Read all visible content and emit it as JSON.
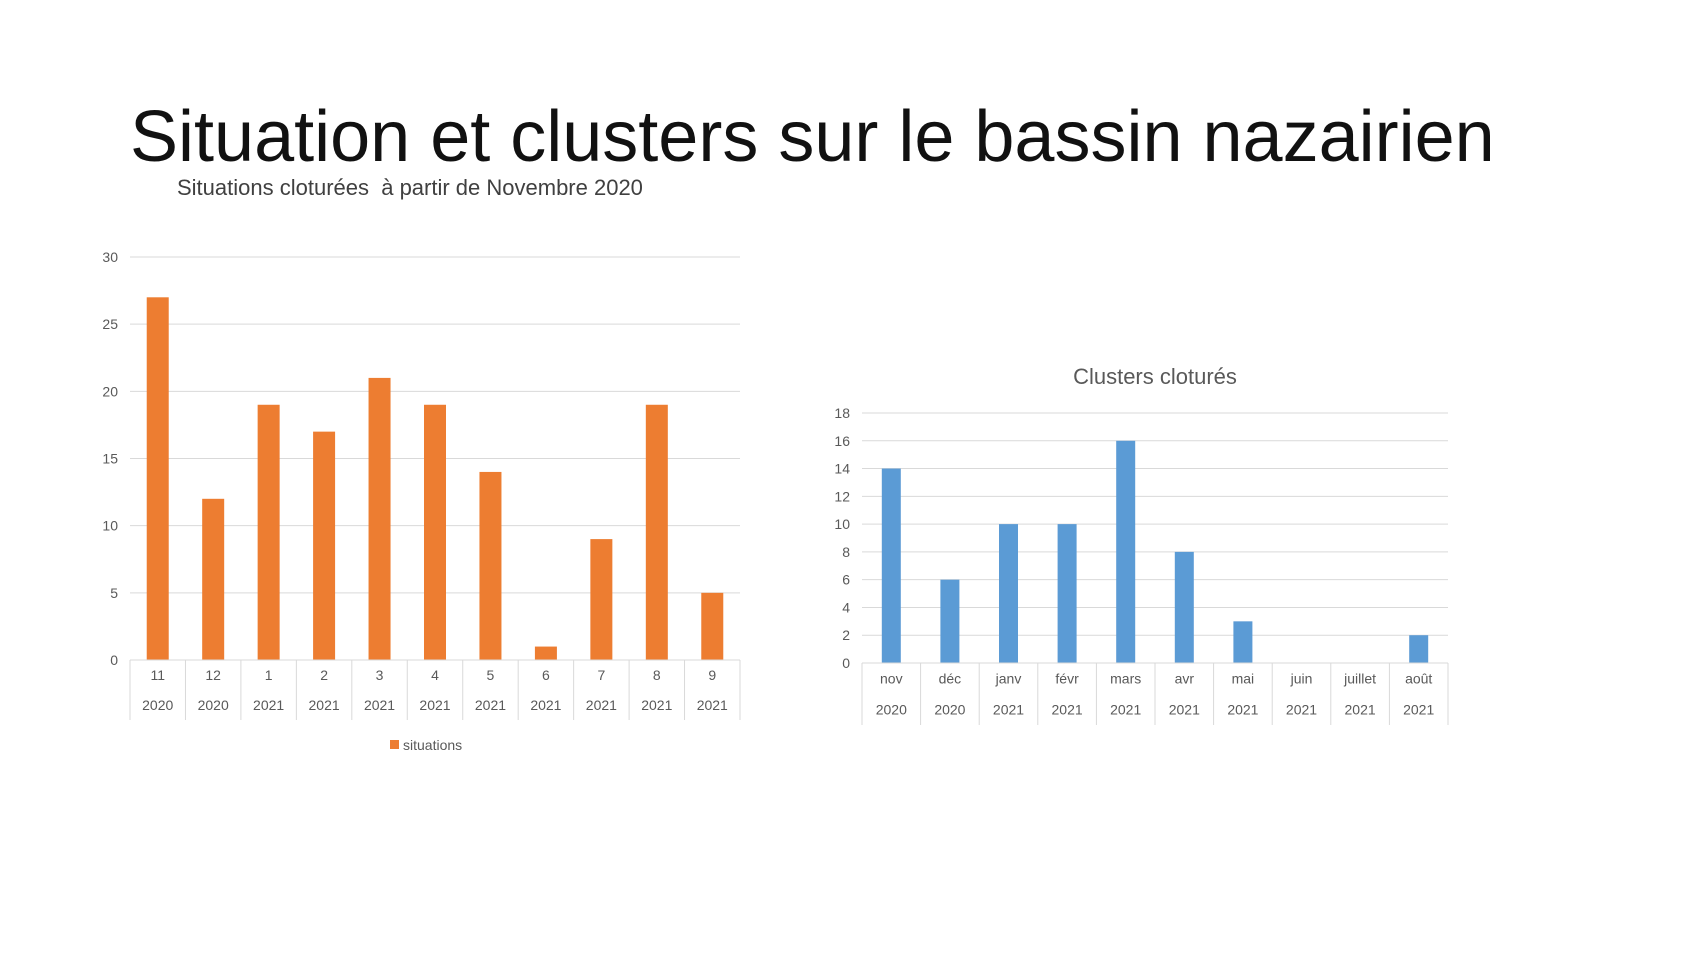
{
  "slide": {
    "title": "Situation et clusters sur le bassin nazairien",
    "subtitle": "Situations cloturées  à partir de Novembre 2020"
  },
  "chart_data": [
    {
      "type": "bar",
      "title": "",
      "categories": [
        {
          "month": "11",
          "year": "2020"
        },
        {
          "month": "12",
          "year": "2020"
        },
        {
          "month": "1",
          "year": "2021"
        },
        {
          "month": "2",
          "year": "2021"
        },
        {
          "month": "3",
          "year": "2021"
        },
        {
          "month": "4",
          "year": "2021"
        },
        {
          "month": "5",
          "year": "2021"
        },
        {
          "month": "6",
          "year": "2021"
        },
        {
          "month": "7",
          "year": "2021"
        },
        {
          "month": "8",
          "year": "2021"
        },
        {
          "month": "9",
          "year": "2021"
        }
      ],
      "series": [
        {
          "name": "situations",
          "values": [
            27,
            12,
            19,
            17,
            21,
            19,
            14,
            1,
            9,
            19,
            5
          ],
          "color": "#ED7D31"
        }
      ],
      "ylim": [
        0,
        30
      ],
      "yticks": [
        0,
        5,
        10,
        15,
        20,
        25,
        30
      ],
      "grid": true,
      "legend": "bottom"
    },
    {
      "type": "bar",
      "title": "Clusters cloturés",
      "categories": [
        {
          "month": "nov",
          "year": "2020"
        },
        {
          "month": "déc",
          "year": "2020"
        },
        {
          "month": "janv",
          "year": "2021"
        },
        {
          "month": "févr",
          "year": "2021"
        },
        {
          "month": "mars",
          "year": "2021"
        },
        {
          "month": "avr",
          "year": "2021"
        },
        {
          "month": "mai",
          "year": "2021"
        },
        {
          "month": "juin",
          "year": "2021"
        },
        {
          "month": "juillet",
          "year": "2021"
        },
        {
          "month": "août",
          "year": "2021"
        }
      ],
      "series": [
        {
          "values": [
            14,
            6,
            10,
            10,
            16,
            8,
            3,
            0,
            0,
            2
          ],
          "color": "#5B9BD5"
        }
      ],
      "ylim": [
        0,
        18
      ],
      "yticks": [
        0,
        2,
        4,
        6,
        8,
        10,
        12,
        14,
        16,
        18
      ],
      "grid": true,
      "legend": "none"
    }
  ]
}
